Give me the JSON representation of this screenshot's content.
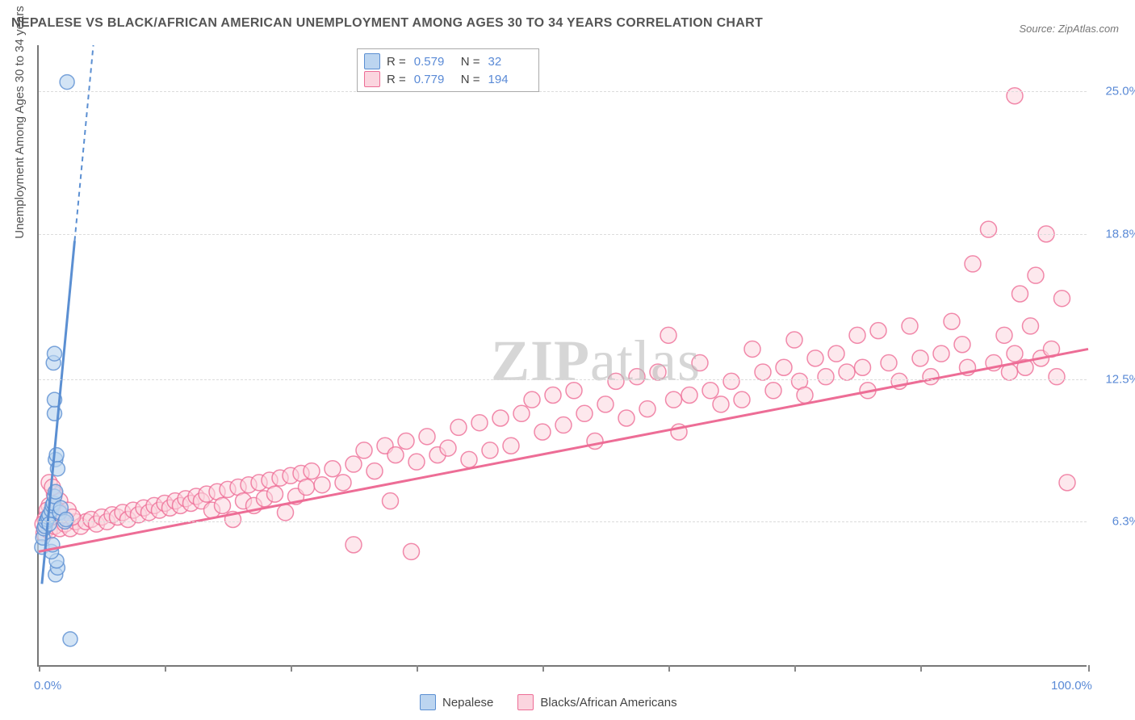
{
  "title": "NEPALESE VS BLACK/AFRICAN AMERICAN UNEMPLOYMENT AMONG AGES 30 TO 34 YEARS CORRELATION CHART",
  "source": "Source: ZipAtlas.com",
  "y_axis_label": "Unemployment Among Ages 30 to 34 years",
  "watermark_bold": "ZIP",
  "watermark_rest": "atlas",
  "chart": {
    "type": "scatter",
    "background_color": "#ffffff",
    "grid_color": "#dcdcdc",
    "axis_color": "#777777",
    "label_color": "#5a8ad6",
    "xlim": [
      0,
      100
    ],
    "ylim": [
      0,
      27
    ],
    "x_ticks": [
      0,
      12,
      24,
      36,
      48,
      60,
      72,
      84,
      100
    ],
    "x_tick_labels": {
      "0": "0.0%",
      "100": "100.0%"
    },
    "y_ticks": [
      6.3,
      12.5,
      18.8,
      25.0
    ],
    "y_tick_labels": [
      "6.3%",
      "12.5%",
      "18.8%",
      "25.0%"
    ],
    "series": [
      {
        "name": "Nepalese",
        "color_fill": "#bcd5f0",
        "color_stroke": "#5b8fd2",
        "marker_radius": 9,
        "marker_opacity": 0.65,
        "R": "0.579",
        "N": "32",
        "trend": {
          "x1": 0.3,
          "y1": 3.6,
          "x2": 5.2,
          "y2": 27,
          "dash_ext": true,
          "width": 3
        },
        "points": [
          [
            0.3,
            5.2
          ],
          [
            0.4,
            5.6
          ],
          [
            0.5,
            6.0
          ],
          [
            0.6,
            6.1
          ],
          [
            0.7,
            6.3
          ],
          [
            0.8,
            6.4
          ],
          [
            0.9,
            6.5
          ],
          [
            1.0,
            6.6
          ],
          [
            1.0,
            6.2
          ],
          [
            1.2,
            6.8
          ],
          [
            1.3,
            7.0
          ],
          [
            1.4,
            7.1
          ],
          [
            1.5,
            7.4
          ],
          [
            1.6,
            7.6
          ],
          [
            1.6,
            4.0
          ],
          [
            1.8,
            4.3
          ],
          [
            1.7,
            4.6
          ],
          [
            1.5,
            11.0
          ],
          [
            1.5,
            11.6
          ],
          [
            1.6,
            9.0
          ],
          [
            1.7,
            9.2
          ],
          [
            1.8,
            8.6
          ],
          [
            2.0,
            6.7
          ],
          [
            2.1,
            6.9
          ],
          [
            2.5,
            6.3
          ],
          [
            2.6,
            6.4
          ],
          [
            1.4,
            13.2
          ],
          [
            1.5,
            13.6
          ],
          [
            2.7,
            25.4
          ],
          [
            3.0,
            1.2
          ],
          [
            1.2,
            5.0
          ],
          [
            1.3,
            5.3
          ]
        ]
      },
      {
        "name": "Blacks/African Americans",
        "color_fill": "#fbd5df",
        "color_stroke": "#ed6d96",
        "marker_radius": 10,
        "marker_opacity": 0.55,
        "R": "0.779",
        "N": "194",
        "trend": {
          "x1": 0,
          "y1": 5.0,
          "x2": 100,
          "y2": 13.8,
          "dash_ext": false,
          "width": 3
        },
        "points": [
          [
            0.5,
            5.8
          ],
          [
            1.0,
            5.9
          ],
          [
            1.5,
            6.1
          ],
          [
            2.0,
            6.0
          ],
          [
            2.5,
            6.2
          ],
          [
            3.0,
            6.0
          ],
          [
            3.5,
            6.3
          ],
          [
            4.0,
            6.1
          ],
          [
            4.5,
            6.3
          ],
          [
            5.0,
            6.4
          ],
          [
            5.5,
            6.2
          ],
          [
            6.0,
            6.5
          ],
          [
            6.5,
            6.3
          ],
          [
            7.0,
            6.6
          ],
          [
            7.5,
            6.5
          ],
          [
            8.0,
            6.7
          ],
          [
            8.5,
            6.4
          ],
          [
            9.0,
            6.8
          ],
          [
            9.5,
            6.6
          ],
          [
            10.0,
            6.9
          ],
          [
            10.5,
            6.7
          ],
          [
            11.0,
            7.0
          ],
          [
            11.5,
            6.8
          ],
          [
            12.0,
            7.1
          ],
          [
            12.5,
            6.9
          ],
          [
            13.0,
            7.2
          ],
          [
            13.5,
            7.0
          ],
          [
            14.0,
            7.3
          ],
          [
            14.5,
            7.1
          ],
          [
            15.0,
            7.4
          ],
          [
            15.5,
            7.2
          ],
          [
            16.0,
            7.5
          ],
          [
            16.5,
            6.8
          ],
          [
            17.0,
            7.6
          ],
          [
            17.5,
            7.0
          ],
          [
            18.0,
            7.7
          ],
          [
            18.5,
            6.4
          ],
          [
            19.0,
            7.8
          ],
          [
            19.5,
            7.2
          ],
          [
            20.0,
            7.9
          ],
          [
            20.5,
            7.0
          ],
          [
            21.0,
            8.0
          ],
          [
            21.5,
            7.3
          ],
          [
            22.0,
            8.1
          ],
          [
            22.5,
            7.5
          ],
          [
            23.0,
            8.2
          ],
          [
            23.5,
            6.7
          ],
          [
            24.0,
            8.3
          ],
          [
            24.5,
            7.4
          ],
          [
            25.0,
            8.4
          ],
          [
            25.5,
            7.8
          ],
          [
            26.0,
            8.5
          ],
          [
            27.0,
            7.9
          ],
          [
            28.0,
            8.6
          ],
          [
            29.0,
            8.0
          ],
          [
            30.0,
            8.8
          ],
          [
            30.0,
            5.3
          ],
          [
            31.0,
            9.4
          ],
          [
            32.0,
            8.5
          ],
          [
            33.0,
            9.6
          ],
          [
            33.5,
            7.2
          ],
          [
            34.0,
            9.2
          ],
          [
            35.0,
            9.8
          ],
          [
            35.5,
            5.0
          ],
          [
            36.0,
            8.9
          ],
          [
            37.0,
            10.0
          ],
          [
            38.0,
            9.2
          ],
          [
            39.0,
            9.5
          ],
          [
            40.0,
            10.4
          ],
          [
            41.0,
            9.0
          ],
          [
            42.0,
            10.6
          ],
          [
            43.0,
            9.4
          ],
          [
            44.0,
            10.8
          ],
          [
            45.0,
            9.6
          ],
          [
            46.0,
            11.0
          ],
          [
            47.0,
            11.6
          ],
          [
            48.0,
            10.2
          ],
          [
            49.0,
            11.8
          ],
          [
            50.0,
            10.5
          ],
          [
            51.0,
            12.0
          ],
          [
            52.0,
            11.0
          ],
          [
            53.0,
            9.8
          ],
          [
            54.0,
            11.4
          ],
          [
            55.0,
            12.4
          ],
          [
            56.0,
            10.8
          ],
          [
            57.0,
            12.6
          ],
          [
            58.0,
            11.2
          ],
          [
            59.0,
            12.8
          ],
          [
            60.0,
            14.4
          ],
          [
            60.5,
            11.6
          ],
          [
            61.0,
            10.2
          ],
          [
            62.0,
            11.8
          ],
          [
            63.0,
            13.2
          ],
          [
            64.0,
            12.0
          ],
          [
            65.0,
            11.4
          ],
          [
            66.0,
            12.4
          ],
          [
            67.0,
            11.6
          ],
          [
            68.0,
            13.8
          ],
          [
            69.0,
            12.8
          ],
          [
            70.0,
            12.0
          ],
          [
            71.0,
            13.0
          ],
          [
            72.0,
            14.2
          ],
          [
            72.5,
            12.4
          ],
          [
            73.0,
            11.8
          ],
          [
            74.0,
            13.4
          ],
          [
            75.0,
            12.6
          ],
          [
            76.0,
            13.6
          ],
          [
            77.0,
            12.8
          ],
          [
            78.0,
            14.4
          ],
          [
            78.5,
            13.0
          ],
          [
            79.0,
            12.0
          ],
          [
            80.0,
            14.6
          ],
          [
            81.0,
            13.2
          ],
          [
            82.0,
            12.4
          ],
          [
            83.0,
            14.8
          ],
          [
            84.0,
            13.4
          ],
          [
            85.0,
            12.6
          ],
          [
            86.0,
            13.6
          ],
          [
            87.0,
            15.0
          ],
          [
            88.0,
            14.0
          ],
          [
            88.5,
            13.0
          ],
          [
            89.0,
            17.5
          ],
          [
            90.5,
            19.0
          ],
          [
            91.0,
            13.2
          ],
          [
            92.0,
            14.4
          ],
          [
            92.5,
            12.8
          ],
          [
            93.0,
            13.6
          ],
          [
            93.5,
            16.2
          ],
          [
            94.0,
            13.0
          ],
          [
            94.5,
            14.8
          ],
          [
            95.0,
            17.0
          ],
          [
            95.5,
            13.4
          ],
          [
            96.0,
            18.8
          ],
          [
            96.5,
            13.8
          ],
          [
            97.0,
            12.6
          ],
          [
            97.5,
            16.0
          ],
          [
            98.0,
            8.0
          ],
          [
            93.0,
            24.8
          ],
          [
            1.0,
            7.0
          ],
          [
            1.5,
            7.5
          ],
          [
            2.0,
            7.2
          ],
          [
            1.2,
            6.5
          ],
          [
            1.8,
            6.8
          ],
          [
            2.2,
            6.6
          ],
          [
            2.8,
            6.8
          ],
          [
            3.2,
            6.5
          ],
          [
            0.8,
            6.8
          ],
          [
            0.6,
            6.4
          ],
          [
            0.4,
            6.2
          ],
          [
            1.0,
            8.0
          ],
          [
            1.3,
            7.8
          ]
        ]
      }
    ]
  },
  "legend_bottom": [
    {
      "label": "Nepalese",
      "fill": "#bcd5f0",
      "stroke": "#5b8fd2"
    },
    {
      "label": "Blacks/African Americans",
      "fill": "#fbd5df",
      "stroke": "#ed6d96"
    }
  ]
}
